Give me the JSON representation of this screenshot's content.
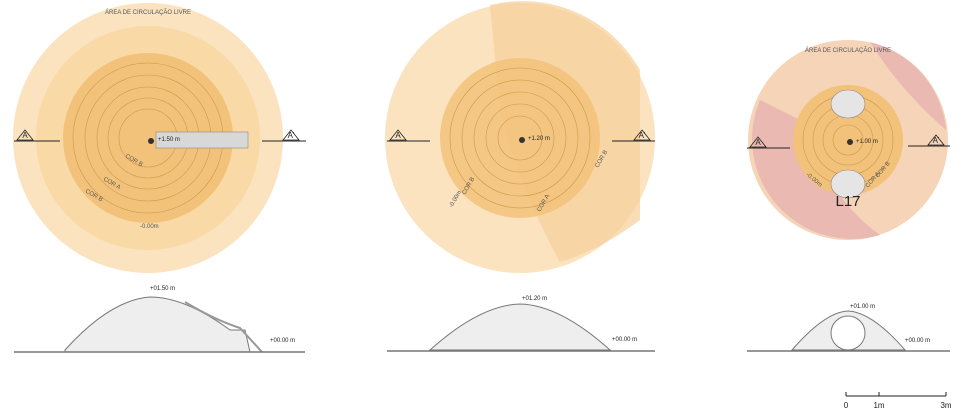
{
  "plans": [
    {
      "area_label": "ÁREA DE CIRCULAÇÃO LIVRE",
      "marker_left": "A",
      "marker_right": "A'",
      "level": "+1.50 m",
      "ring_labels": [
        "COR B",
        "COR A",
        "COR B"
      ],
      "edge_level": "-0.00m"
    },
    {
      "marker_left": "A",
      "marker_right": "A'",
      "level": "+1.20 m",
      "ring_labels": [
        "COR B",
        "COR A",
        "COR B"
      ],
      "edge_level": "-0.00m"
    },
    {
      "area_label": "ÁREA DE CIRCULAÇÃO LIVRE",
      "marker_left": "A",
      "marker_right": "A'",
      "level": "+1.00 m",
      "ring_labels": [
        "COR A",
        "COR B"
      ],
      "edge_level": "-0.00m",
      "code": "L17"
    }
  ],
  "sections": [
    {
      "top_level": "+01.50 m",
      "ground_level": "+00.00 m"
    },
    {
      "top_level": "+01.20 m",
      "ground_level": "+00.00 m"
    },
    {
      "top_level": "+01.00 m",
      "ground_level": "+00.00 m"
    }
  ],
  "scale_bar": [
    "0",
    "1m",
    "3m"
  ]
}
